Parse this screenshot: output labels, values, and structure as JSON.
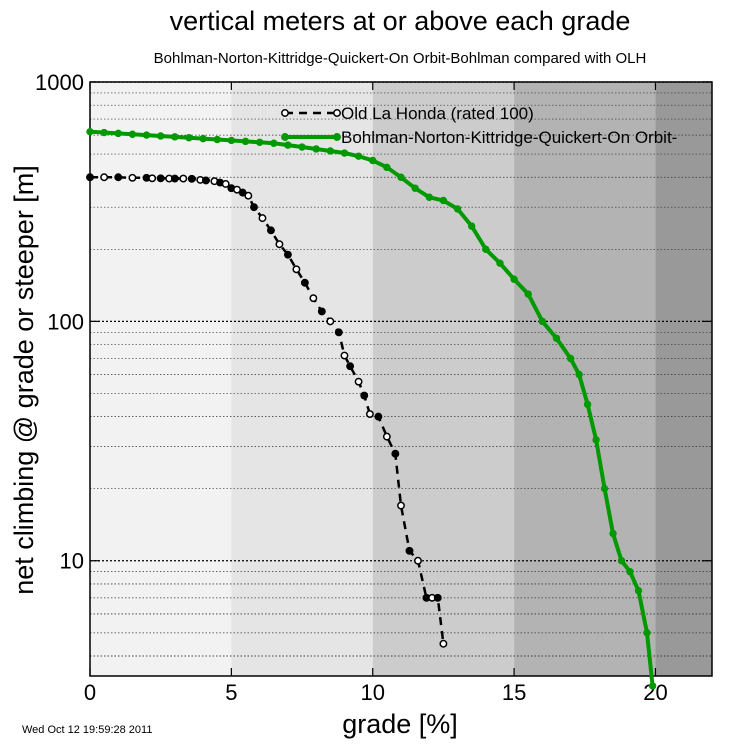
{
  "chart_data": {
    "type": "line",
    "title": "vertical meters at or above each grade",
    "subtitle": "Bohlman-Norton-Kittridge-Quickert-On Orbit-Bohlman compared with OLH",
    "xlabel": "grade [%]",
    "ylabel": "net climbing @ grade or steeper [m]",
    "xlim": [
      0,
      22
    ],
    "ylim": [
      3.3,
      1000
    ],
    "y_scale": "log",
    "x_ticks": [
      "0",
      "5",
      "10",
      "15",
      "20"
    ],
    "y_ticks": [
      "10",
      "100",
      "1000"
    ],
    "background_bands": [
      {
        "from": 0,
        "to": 5,
        "color": "#f2f2f2"
      },
      {
        "from": 5,
        "to": 10,
        "color": "#e5e5e5"
      },
      {
        "from": 10,
        "to": 15,
        "color": "#cccccc"
      },
      {
        "from": 15,
        "to": 20,
        "color": "#b3b3b3"
      },
      {
        "from": 20,
        "to": 22,
        "color": "#999999"
      }
    ],
    "legend_position": "top-right",
    "timestamp": "Wed Oct 12 19:59:28 2011",
    "series": [
      {
        "name": "Old La Honda (rated 100)",
        "color": "#000000",
        "dashed": true,
        "x": [
          0,
          0.5,
          1,
          1.5,
          2,
          2.2,
          2.5,
          2.8,
          3.0,
          3.3,
          3.6,
          3.9,
          4.1,
          4.4,
          4.6,
          4.8,
          5.0,
          5.2,
          5.4,
          5.6,
          5.8,
          6.1,
          6.4,
          6.7,
          7.0,
          7.3,
          7.6,
          7.9,
          8.2,
          8.5,
          8.8,
          9.0,
          9.2,
          9.5,
          9.7,
          9.9,
          10.2,
          10.5,
          10.8,
          11.0,
          11.3,
          11.6,
          11.9,
          12.1,
          12.3,
          12.5
        ],
        "y": [
          400,
          400,
          400,
          398,
          398,
          396,
          396,
          395,
          395,
          395,
          394,
          390,
          388,
          385,
          380,
          375,
          360,
          355,
          345,
          335,
          300,
          270,
          240,
          210,
          190,
          165,
          145,
          125,
          110,
          100,
          90,
          72,
          65,
          56,
          49,
          41,
          40,
          33,
          28,
          17,
          11,
          10,
          7,
          7,
          7,
          4.5
        ]
      },
      {
        "name": "Bohlman-Norton-Kittridge-Quickert-On Orbit-",
        "color": "#009900",
        "dashed": false,
        "x": [
          0,
          0.5,
          1,
          1.5,
          2,
          2.5,
          3,
          3.5,
          4,
          4.5,
          5,
          5.5,
          6,
          6.5,
          7,
          7.5,
          8,
          8.5,
          9,
          9.5,
          10,
          10.5,
          11,
          11.5,
          12,
          12.5,
          13,
          13.5,
          14,
          14.5,
          15,
          15.5,
          16,
          16.5,
          17,
          17.3,
          17.6,
          17.9,
          18.2,
          18.5,
          18.8,
          19.1,
          19.4,
          19.7,
          19.9
        ],
        "y": [
          620,
          615,
          610,
          605,
          600,
          595,
          590,
          585,
          580,
          575,
          570,
          565,
          560,
          555,
          545,
          535,
          525,
          515,
          505,
          490,
          470,
          440,
          400,
          360,
          330,
          320,
          295,
          250,
          200,
          175,
          150,
          130,
          100,
          85,
          70,
          60,
          45,
          32,
          20,
          13,
          10,
          9,
          7.5,
          5,
          3
        ]
      }
    ]
  }
}
